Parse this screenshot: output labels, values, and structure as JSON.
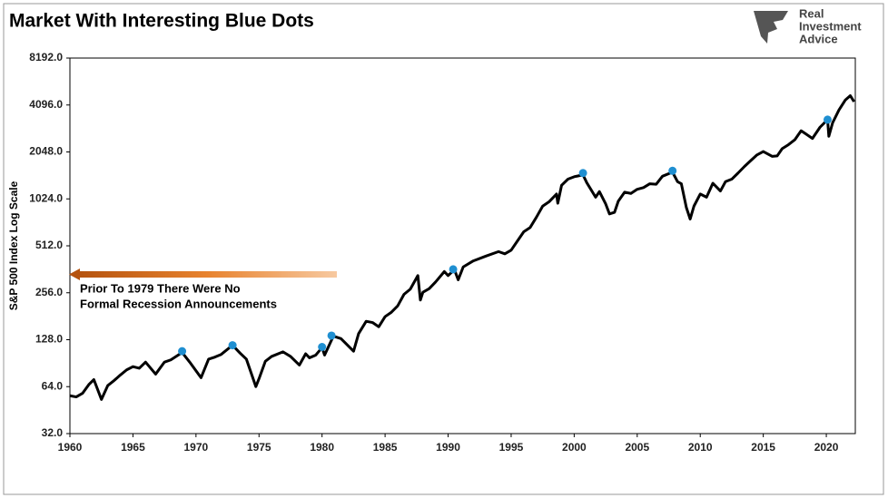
{
  "chart_data": {
    "type": "line",
    "title": "Market With Interesting Blue Dots",
    "logo": [
      "Real",
      "Investment",
      "Advice"
    ],
    "y_label": "S&P 500 Index Log Scale",
    "annotation": [
      "Prior To 1979 There Were No",
      "Formal Recession Announcements"
    ],
    "log_scale": true,
    "xlim": [
      1960,
      2022.3
    ],
    "xticks": [
      1960,
      1965,
      1970,
      1975,
      1980,
      1985,
      1990,
      1995,
      2000,
      2005,
      2010,
      2015,
      2020
    ],
    "ylim": [
      32,
      8192
    ],
    "yticks": [
      {
        "value": 32,
        "label": "32.0"
      },
      {
        "value": 64,
        "label": "64.0"
      },
      {
        "value": 128,
        "label": "128.0"
      },
      {
        "value": 256,
        "label": "256.0"
      },
      {
        "value": 512,
        "label": "512.0"
      },
      {
        "value": 1024,
        "label": "1024.0"
      },
      {
        "value": 2048,
        "label": "2048.0"
      },
      {
        "value": 4096,
        "label": "4096.0"
      },
      {
        "value": 8192,
        "label": "8192.0"
      }
    ],
    "series": [
      {
        "color": "#000000",
        "x": [
          1960,
          1960.5,
          1961,
          1961.5,
          1961.9,
          1962.5,
          1963,
          1963.5,
          1964,
          1964.5,
          1965,
          1965.5,
          1966,
          1966.8,
          1967.5,
          1968,
          1968.9,
          1969.5,
          1970.4,
          1971,
          1971.5,
          1972,
          1972.9,
          1973.5,
          1974,
          1974.75,
          1975,
          1975.5,
          1976,
          1976.9,
          1977.5,
          1978.2,
          1978.7,
          1979,
          1979.5,
          1980,
          1980.2,
          1980.9,
          1981.5,
          1982.5,
          1982.9,
          1983.5,
          1984,
          1984.5,
          1985,
          1985.5,
          1986,
          1986.5,
          1987,
          1987.6,
          1987.8,
          1988,
          1988.5,
          1989,
          1989.7,
          1990,
          1990.5,
          1990.8,
          1991.2,
          1992,
          1993,
          1994,
          1994.5,
          1995,
          1995.5,
          1996,
          1996.5,
          1997,
          1997.5,
          1998,
          1998.6,
          1998.7,
          1999,
          1999.5,
          2000,
          2000.7,
          2001,
          2001.7,
          2002,
          2002.5,
          2002.8,
          2003.2,
          2003.5,
          2004,
          2004.5,
          2005,
          2005.5,
          2006,
          2006.5,
          2007,
          2007.8,
          2008.2,
          2008.5,
          2008.9,
          2009.2,
          2009.5,
          2010,
          2010.5,
          2011,
          2011.6,
          2012,
          2012.5,
          2013,
          2013.5,
          2014,
          2014.5,
          2015,
          2015.7,
          2016.1,
          2016.5,
          2017,
          2017.5,
          2018,
          2018.9,
          2019.5,
          2020.1,
          2020.2,
          2020.5,
          2021,
          2021.5,
          2021.9,
          2022.2
        ],
        "values": [
          56,
          55,
          58,
          66,
          71,
          53,
          65,
          70,
          76,
          82,
          86,
          84,
          92,
          77,
          92,
          95,
          106,
          92,
          73,
          96,
          99,
          103,
          118,
          105,
          96,
          64,
          72,
          93,
          100,
          107,
          100,
          88,
          104,
          98,
          102,
          114,
          102,
          135,
          130,
          108,
          140,
          168,
          165,
          155,
          180,
          192,
          211,
          250,
          270,
          330,
          230,
          258,
          272,
          300,
          350,
          330,
          360,
          310,
          375,
          410,
          440,
          470,
          455,
          480,
          550,
          630,
          670,
          780,
          920,
          980,
          1100,
          960,
          1250,
          1370,
          1420,
          1460,
          1300,
          1050,
          1140,
          950,
          820,
          840,
          990,
          1130,
          1110,
          1180,
          1210,
          1280,
          1270,
          1430,
          1520,
          1320,
          1280,
          900,
          760,
          920,
          1100,
          1050,
          1290,
          1150,
          1320,
          1370,
          1500,
          1650,
          1800,
          1960,
          2060,
          1920,
          1930,
          2150,
          2280,
          2450,
          2800,
          2500,
          2950,
          3300,
          2580,
          3150,
          3800,
          4400,
          4700,
          4300
        ]
      }
    ],
    "dots": {
      "color": "#1f8fd1",
      "x": [
        1968.9,
        1972.9,
        1980.0,
        1980.75,
        1990.4,
        2000.7,
        2007.8,
        2020.1
      ],
      "values": [
        108,
        118,
        115,
        136,
        362,
        1500,
        1550,
        3300
      ]
    }
  }
}
